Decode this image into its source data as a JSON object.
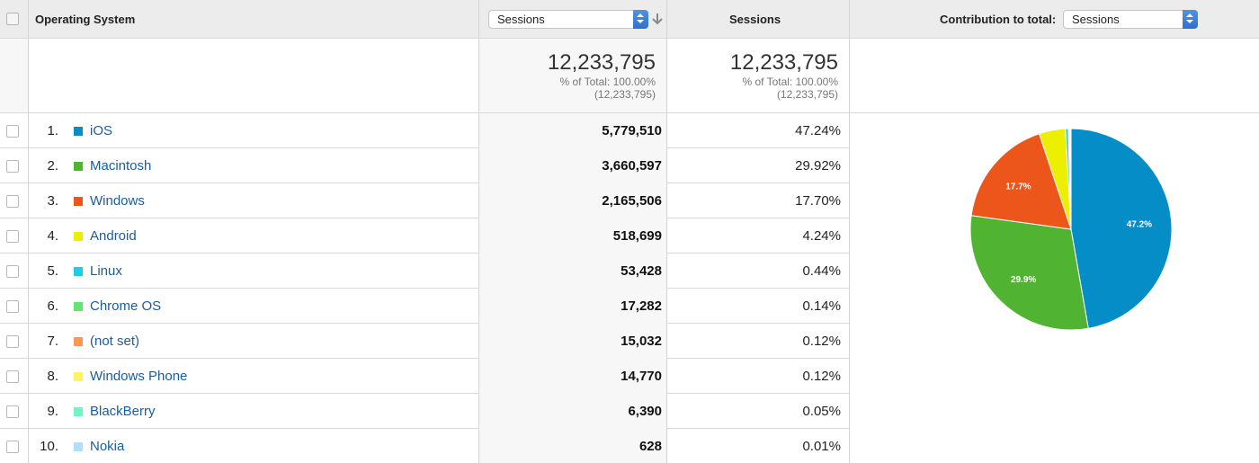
{
  "header": {
    "dimension_title": "Operating System",
    "metric_select": "Sessions",
    "sessions_title": "Sessions",
    "contribution_label": "Contribution to total:",
    "contribution_select": "Sessions"
  },
  "totals": {
    "primary_value": "12,233,795",
    "primary_pct": "% of Total: 100.00%",
    "primary_total": "(12,233,795)",
    "secondary_value": "12,233,795",
    "secondary_pct": "% of Total: 100.00%",
    "secondary_total": "(12,233,795)"
  },
  "rows": [
    {
      "num": "1.",
      "label": "iOS",
      "value": "5,779,510",
      "pct": "47.24%",
      "color": "#058dc7"
    },
    {
      "num": "2.",
      "label": "Macintosh",
      "value": "3,660,597",
      "pct": "29.92%",
      "color": "#50b432"
    },
    {
      "num": "3.",
      "label": "Windows",
      "value": "2,165,506",
      "pct": "17.70%",
      "color": "#ed561b"
    },
    {
      "num": "4.",
      "label": "Android",
      "value": "518,699",
      "pct": "4.24%",
      "color": "#edef00"
    },
    {
      "num": "5.",
      "label": "Linux",
      "value": "53,428",
      "pct": "0.44%",
      "color": "#24cbe5"
    },
    {
      "num": "6.",
      "label": "Chrome OS",
      "value": "17,282",
      "pct": "0.14%",
      "color": "#64e572"
    },
    {
      "num": "7.",
      "label": "(not set)",
      "value": "15,032",
      "pct": "0.12%",
      "color": "#ff9655"
    },
    {
      "num": "8.",
      "label": "Windows Phone",
      "value": "14,770",
      "pct": "0.12%",
      "color": "#fff263"
    },
    {
      "num": "9.",
      "label": "BlackBerry",
      "value": "6,390",
      "pct": "0.05%",
      "color": "#6af9c4"
    },
    {
      "num": "10.",
      "label": "Nokia",
      "value": "628",
      "pct": "0.01%",
      "color": "#b2deff"
    }
  ],
  "chart_data": {
    "type": "pie",
    "categories": [
      "iOS",
      "Macintosh",
      "Windows",
      "Android",
      "Linux",
      "Chrome OS",
      "(not set)",
      "Windows Phone",
      "BlackBerry",
      "Nokia"
    ],
    "values": [
      47.24,
      29.92,
      17.7,
      4.24,
      0.44,
      0.14,
      0.12,
      0.12,
      0.05,
      0.01
    ],
    "colors": [
      "#058dc7",
      "#50b432",
      "#ed561b",
      "#edef00",
      "#24cbe5",
      "#64e572",
      "#ff9655",
      "#fff263",
      "#6af9c4",
      "#b2deff"
    ],
    "slice_labels": [
      "47.2%",
      "29.9%",
      "17.7%",
      "",
      "",
      "",
      "",
      "",
      "",
      ""
    ]
  },
  "icons": {
    "sort": "sort-descending-icon",
    "select": "select-arrows-icon",
    "checkbox": "checkbox-icon"
  }
}
